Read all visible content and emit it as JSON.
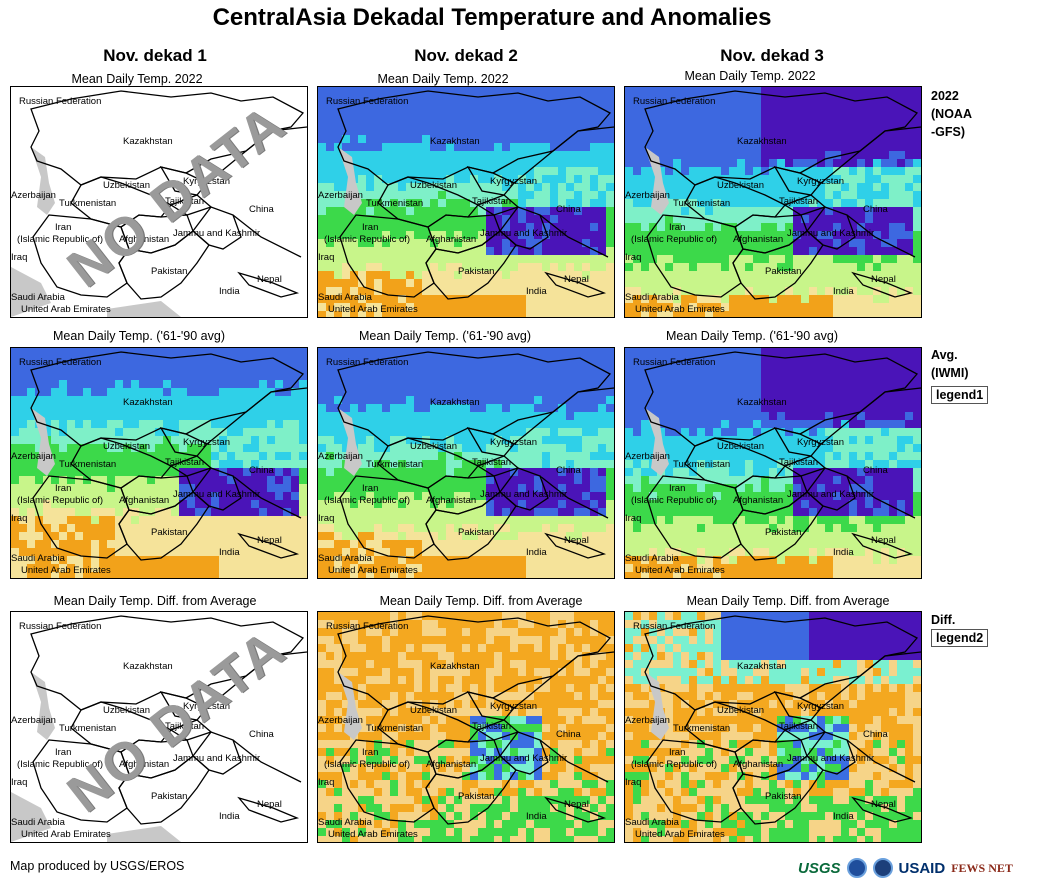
{
  "title": "CentralAsia Dekadal Temperature and Anomalies",
  "columns": [
    "Nov. dekad 1",
    "Nov. dekad 2",
    "Nov. dekad 3"
  ],
  "panel_titles": {
    "current": "Mean Daily Temp. 2022",
    "average": "Mean Daily Temp. ('61-'90 avg)",
    "difference": "Mean Daily Temp. Diff. from Average"
  },
  "row_labels": {
    "current": "2022\n(NOAA\n-GFS)",
    "average": "Avg.\n(IWMI)",
    "difference": "Diff."
  },
  "legends": {
    "average": "legend1",
    "difference": "legend2"
  },
  "no_data_text": "NO DATA",
  "map_labels": {
    "russia": "Russian Federation",
    "kazakhstan": "Kazakhstan",
    "uzbekistan": "Uzbekistan",
    "kyrgyzstan": "Kyrgyzstan",
    "azerbaijan": "Azerbaijan",
    "turkmenistan": "Turkmenistan",
    "tajikistan": "Tajikistan",
    "china": "China",
    "iran_1": "Iran",
    "iran_2": "(Islamic Republic of)",
    "afghanistan": "Afghanistan",
    "jammu": "Jammu and Kashmir",
    "iraq": "Iraq",
    "pakistan": "Pakistan",
    "nepal": "Nepal",
    "india": "India",
    "saudi": "Saudi Arabia",
    "uae": "United Arab Emirates"
  },
  "panels": [
    {
      "row": "current",
      "col": 1,
      "status": "no-data"
    },
    {
      "row": "current",
      "col": 2,
      "status": "data"
    },
    {
      "row": "current",
      "col": 3,
      "status": "data"
    },
    {
      "row": "average",
      "col": 1,
      "status": "data"
    },
    {
      "row": "average",
      "col": 2,
      "status": "data"
    },
    {
      "row": "average",
      "col": 3,
      "status": "data"
    },
    {
      "row": "difference",
      "col": 1,
      "status": "no-data"
    },
    {
      "row": "difference",
      "col": 2,
      "status": "data"
    },
    {
      "row": "difference",
      "col": 3,
      "status": "data"
    }
  ],
  "colors": {
    "very_cold": "#4a14b8",
    "cold": "#3d68e0",
    "cool": "#2fd0e8",
    "mild_cool": "#7ef0c8",
    "mild": "#3cd94a",
    "warm": "#c8f58a",
    "hot": "#f5e39a",
    "very_hot": "#f2a21a",
    "diff_warm": "#f4a820",
    "diff_slightly_warm": "#f6d488",
    "diff_neutral": "#3dd94a",
    "diff_cool": "#7af0d0",
    "diff_cold": "#3b6ee2",
    "no_data_gray": "#c8c8c8"
  },
  "footer": {
    "credit": "Map produced by USGS/EROS",
    "logos": [
      "USGS",
      "USAID",
      "FEWS NET"
    ]
  }
}
